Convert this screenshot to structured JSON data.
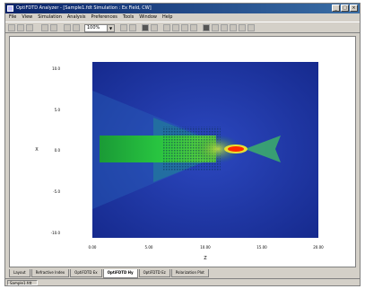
{
  "window": {
    "title": "OptiFDTD Analyzer - [Sample1.fdt Simulation : Ex Field, CW]"
  },
  "menu": [
    "File",
    "View",
    "Simulation",
    "Analysis",
    "Preferences",
    "Tools",
    "Window",
    "Help"
  ],
  "toolbar": {
    "zoom_value": "100%"
  },
  "chart_data": {
    "type": "heatmap",
    "title": "",
    "xlabel": "Z",
    "ylabel": "X",
    "x_ticks": [
      "0.00",
      "5.00",
      "10.00",
      "15.00",
      "20.00"
    ],
    "y_ticks": [
      "-10.0",
      "-5.0",
      "0.0",
      "5.0",
      "10.0"
    ],
    "colors": {
      "low": "#1a2a9a",
      "mid": "#18a838",
      "high": "#e8e030",
      "peak": "#ff2a00"
    }
  },
  "tabs": [
    "Layout",
    "Refractive Index",
    "OptiFDTD Ex",
    "OptiFDTD Hy",
    "OptiFDTD Ez",
    "Polarization Plot"
  ],
  "active_tab": 3,
  "status": {
    "document_tab": "Sample1.fdt"
  }
}
